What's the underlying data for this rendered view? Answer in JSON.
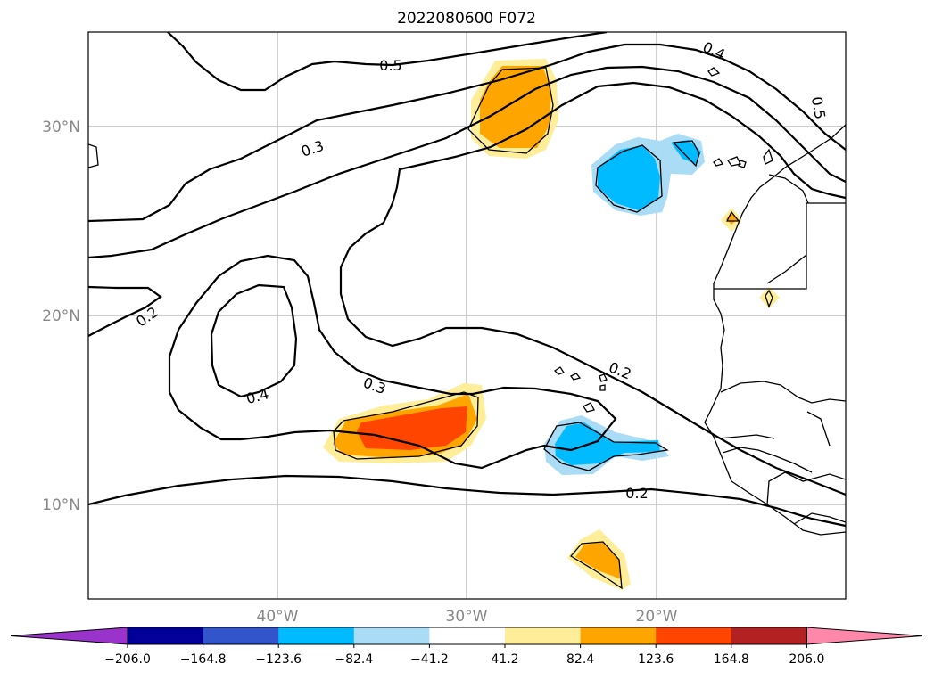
{
  "title": "2022080600 F072",
  "lat_labels": [
    "30°N",
    "20°N",
    "10°N"
  ],
  "lon_labels": [
    "40°W",
    "30°W",
    "20°W"
  ],
  "contour_labels": [
    "0.5",
    "0.4",
    "0.5",
    "0.3",
    "0.2",
    "0.4",
    "0.3",
    "0.2",
    "0.2"
  ],
  "colorbar": {
    "ticks": [
      "−206.0",
      "−164.8",
      "−123.6",
      "−82.4",
      "−41.2",
      "41.2",
      "82.4",
      "123.6",
      "164.8",
      "206.0"
    ],
    "colors": [
      "#9933cc",
      "#000099",
      "#3355cc",
      "#00bbff",
      "#aaddf5",
      "#ffffff",
      "#ffee99",
      "#ffa500",
      "#ff4500",
      "#b22222",
      "#ff88aa"
    ]
  }
}
